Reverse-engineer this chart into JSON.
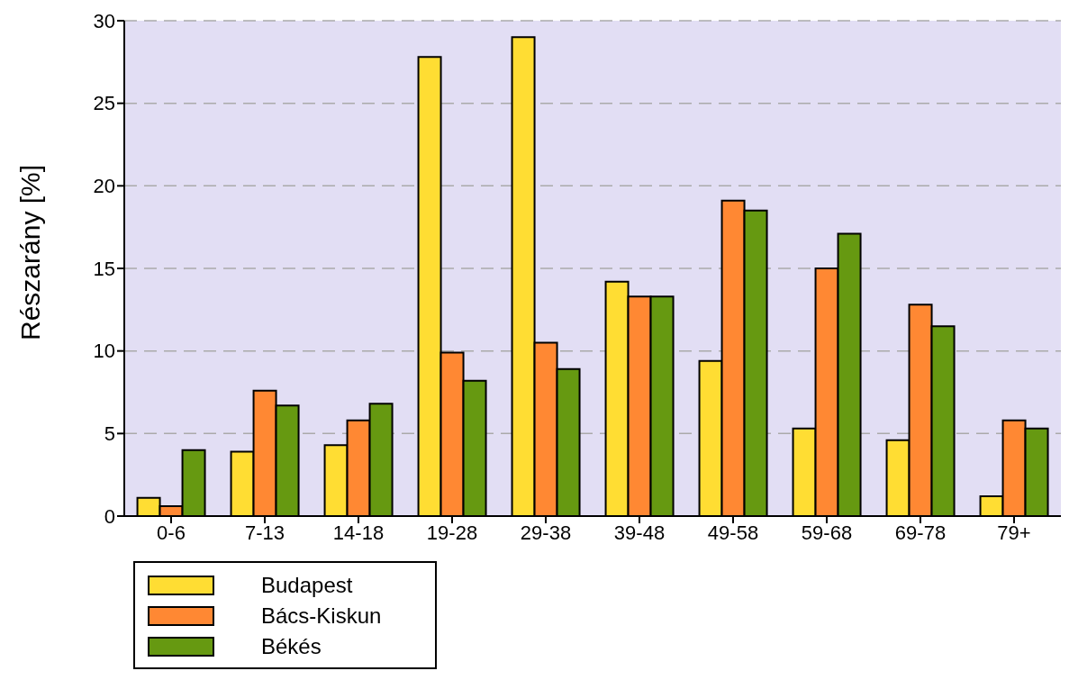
{
  "chart_data": {
    "type": "bar",
    "ylabel": "Részarány [%]",
    "categories": [
      "0-6",
      "7-13",
      "14-18",
      "19-28",
      "29-38",
      "39-48",
      "49-58",
      "59-68",
      "69-78",
      "79+"
    ],
    "series": [
      {
        "name": "Budapest",
        "color": "#ffdd33",
        "values": [
          1.1,
          3.9,
          4.3,
          27.8,
          29.0,
          14.2,
          9.4,
          5.3,
          4.6,
          1.2
        ]
      },
      {
        "name": "Bács-Kiskun",
        "color": "#ff8833",
        "values": [
          0.6,
          7.6,
          5.8,
          9.9,
          10.5,
          13.3,
          19.1,
          15.0,
          12.8,
          5.8
        ]
      },
      {
        "name": "Békés",
        "color": "#669911",
        "values": [
          4.0,
          6.7,
          6.8,
          8.2,
          8.9,
          13.3,
          18.5,
          17.1,
          11.5,
          5.3
        ]
      }
    ],
    "ylim": [
      0,
      30
    ],
    "yticks": [
      0,
      5,
      10,
      15,
      20,
      25,
      30
    ],
    "grid": "y",
    "legend": "bottom left"
  }
}
